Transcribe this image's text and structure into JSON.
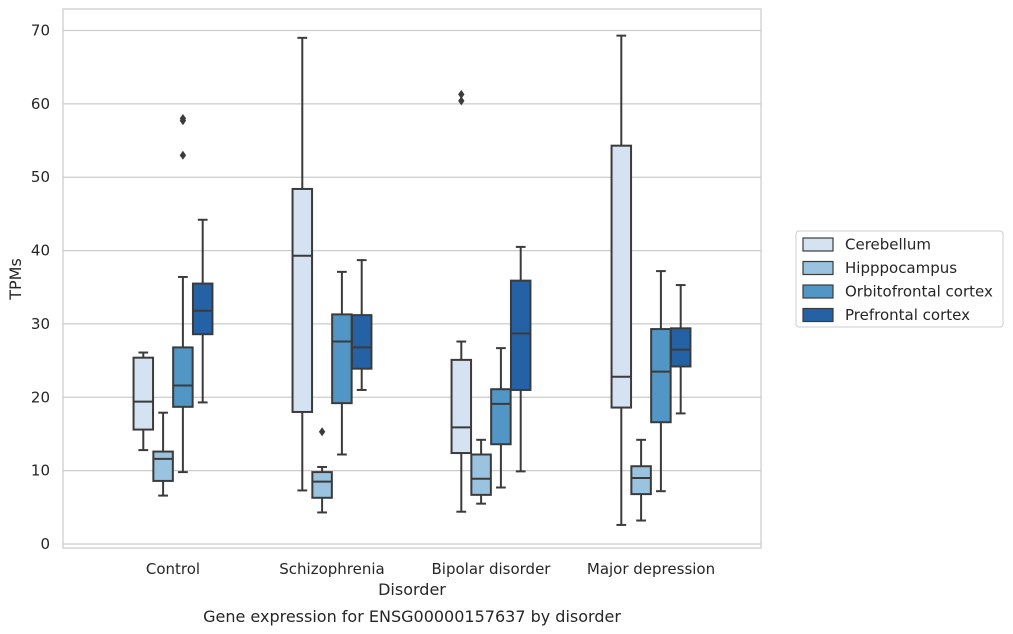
{
  "chart_data": {
    "type": "box",
    "title": "Gene expression for ENSG00000157637 by disorder",
    "xlabel": "Disorder",
    "ylabel": "TPMs",
    "ylim": [
      -0.5,
      73
    ],
    "yticks": [
      0,
      10,
      20,
      30,
      40,
      50,
      60,
      70
    ],
    "grid": "horizontal",
    "legend_position": "right",
    "categories": [
      "Control",
      "Schizophrenia",
      "Bipolar disorder",
      "Major depression"
    ],
    "series": [
      {
        "name": "Cerebellum",
        "color": "#d4e2f1",
        "boxes": [
          {
            "whislo": 12.8,
            "q1": 15.6,
            "med": 19.4,
            "q3": 25.4,
            "whishi": 26.1,
            "fliers": []
          },
          {
            "whislo": 7.3,
            "q1": 18.0,
            "med": 39.3,
            "q3": 48.4,
            "whishi": 69.0,
            "fliers": []
          },
          {
            "whislo": 4.4,
            "q1": 12.4,
            "med": 15.9,
            "q3": 25.1,
            "whishi": 27.6,
            "fliers": [
              60.4,
              61.3
            ]
          },
          {
            "whislo": 2.6,
            "q1": 18.6,
            "med": 22.8,
            "q3": 54.3,
            "whishi": 69.3,
            "fliers": []
          }
        ]
      },
      {
        "name": "Hipppocampus",
        "color": "#9ac3df",
        "boxes": [
          {
            "whislo": 6.6,
            "q1": 8.6,
            "med": 11.6,
            "q3": 12.6,
            "whishi": 17.9,
            "fliers": []
          },
          {
            "whislo": 4.3,
            "q1": 6.3,
            "med": 8.5,
            "q3": 9.8,
            "whishi": 10.5,
            "fliers": [
              15.3
            ]
          },
          {
            "whislo": 5.5,
            "q1": 6.7,
            "med": 8.9,
            "q3": 12.2,
            "whishi": 14.2,
            "fliers": []
          },
          {
            "whislo": 3.2,
            "q1": 6.8,
            "med": 9.0,
            "q3": 10.6,
            "whishi": 14.2,
            "fliers": []
          }
        ]
      },
      {
        "name": "Orbitofrontal cortex",
        "color": "#5296c6",
        "boxes": [
          {
            "whislo": 9.8,
            "q1": 18.7,
            "med": 21.6,
            "q3": 26.8,
            "whishi": 36.4,
            "fliers": [
              53.0,
              57.7,
              58.0
            ]
          },
          {
            "whislo": 12.2,
            "q1": 19.2,
            "med": 27.6,
            "q3": 31.3,
            "whishi": 37.1,
            "fliers": []
          },
          {
            "whislo": 7.7,
            "q1": 13.6,
            "med": 19.1,
            "q3": 21.1,
            "whishi": 26.7,
            "fliers": []
          },
          {
            "whislo": 7.2,
            "q1": 16.6,
            "med": 23.5,
            "q3": 29.3,
            "whishi": 37.2,
            "fliers": []
          }
        ]
      },
      {
        "name": "Prefrontal cortex",
        "color": "#2462a5",
        "boxes": [
          {
            "whislo": 19.3,
            "q1": 28.6,
            "med": 31.8,
            "q3": 35.5,
            "whishi": 44.2,
            "fliers": []
          },
          {
            "whislo": 21.0,
            "q1": 23.9,
            "med": 26.8,
            "q3": 31.2,
            "whishi": 38.7,
            "fliers": []
          },
          {
            "whislo": 9.9,
            "q1": 21.0,
            "med": 28.7,
            "q3": 35.9,
            "whishi": 40.5,
            "fliers": []
          },
          {
            "whislo": 17.8,
            "q1": 24.2,
            "med": 26.5,
            "q3": 29.4,
            "whishi": 35.3,
            "fliers": []
          }
        ]
      }
    ]
  }
}
